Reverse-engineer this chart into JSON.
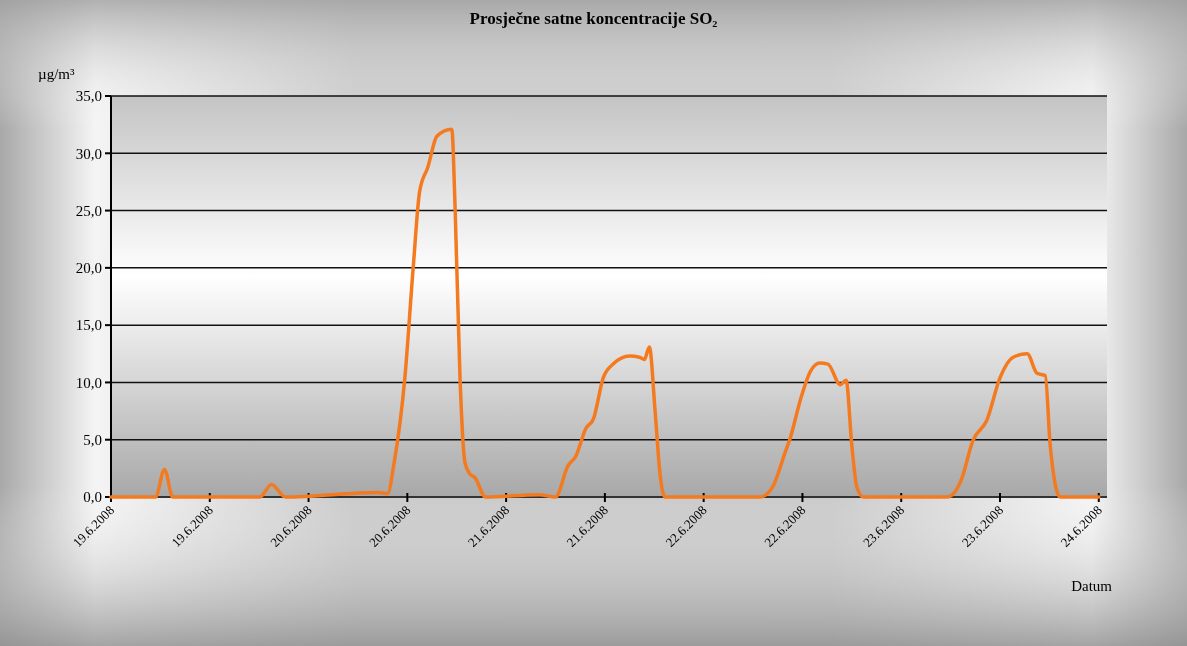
{
  "chart_data": {
    "type": "line",
    "title": "Prosječne satne koncentracije SO₂",
    "ylabel": "µg/m³",
    "xlabel": "Datum",
    "x": [
      "2008-06-19T00:00",
      "2008-06-19T05:24",
      "2008-06-19T06:30",
      "2008-06-19T07:30",
      "2008-06-19T18:06",
      "2008-06-19T19:30",
      "2008-06-19T21:12",
      "2008-06-20T08:24",
      "2008-06-20T09:36",
      "2008-06-20T10:24",
      "2008-06-20T11:42",
      "2008-06-20T12:42",
      "2008-06-20T13:30",
      "2008-06-20T14:30",
      "2008-06-20T15:36",
      "2008-06-20T17:24",
      "2008-06-20T17:48",
      "2008-06-20T18:24",
      "2008-06-20T19:00",
      "2008-06-20T19:36",
      "2008-06-20T20:12",
      "2008-06-20T21:30",
      "2008-06-21T04:00",
      "2008-06-21T06:00",
      "2008-06-21T07:30",
      "2008-06-21T08:30",
      "2008-06-21T09:42",
      "2008-06-21T10:36",
      "2008-06-21T11:48",
      "2008-06-21T13:00",
      "2008-06-21T15:00",
      "2008-06-21T16:12",
      "2008-06-21T16:48",
      "2008-06-21T17:24",
      "2008-06-21T18:06",
      "2008-06-21T18:42",
      "2008-06-21T19:18",
      "2008-06-22T06:54",
      "2008-06-22T08:24",
      "2008-06-22T09:54",
      "2008-06-22T10:30",
      "2008-06-22T11:48",
      "2008-06-22T13:00",
      "2008-06-22T14:06",
      "2008-06-22T15:06",
      "2008-06-22T16:36",
      "2008-06-22T17:18",
      "2008-06-22T18:00",
      "2008-06-22T18:36",
      "2008-06-22T19:24",
      "2008-06-23T05:36",
      "2008-06-23T07:18",
      "2008-06-23T08:42",
      "2008-06-23T10:24",
      "2008-06-23T12:00",
      "2008-06-23T13:36",
      "2008-06-23T15:18",
      "2008-06-23T16:30",
      "2008-06-23T17:30",
      "2008-06-23T18:06",
      "2008-06-23T19:18",
      "2008-06-24T00:00"
    ],
    "series": [
      {
        "color": "#f47a20",
        "values": [
          0,
          0,
          2.4,
          0,
          0,
          1.1,
          0,
          0.4,
          0.3,
          3,
          10.4,
          19.9,
          26.7,
          28.8,
          31.5,
          32.1,
          25.3,
          10.4,
          3,
          2,
          1.7,
          0,
          0.2,
          0,
          2.7,
          3.6,
          6,
          6.8,
          10.4,
          11.6,
          12.3,
          12.2,
          12,
          13.1,
          7.5,
          2,
          0,
          0,
          0.9,
          3.9,
          5.1,
          8.6,
          11,
          11.7,
          11.6,
          9.8,
          10.2,
          4.5,
          0.9,
          0,
          0,
          1.5,
          4.9,
          6.7,
          10.4,
          12.2,
          12.5,
          10.8,
          10.6,
          4.5,
          0,
          0
        ]
      }
    ],
    "xlim": [
      "2008-06-19T00:00",
      "2008-06-24T01:00"
    ],
    "xticks": [
      {
        "value": "2008-06-19T00:00",
        "label": "19.6.2008"
      },
      {
        "value": "2008-06-19T12:00",
        "label": "19.6.2008"
      },
      {
        "value": "2008-06-20T00:00",
        "label": "20.6.2008"
      },
      {
        "value": "2008-06-20T12:00",
        "label": "20.6.2008"
      },
      {
        "value": "2008-06-21T00:00",
        "label": "21.6.2008"
      },
      {
        "value": "2008-06-21T12:00",
        "label": "21.6.2008"
      },
      {
        "value": "2008-06-22T00:00",
        "label": "22.6.2008"
      },
      {
        "value": "2008-06-22T12:00",
        "label": "22.6.2008"
      },
      {
        "value": "2008-06-23T00:00",
        "label": "23.6.2008"
      },
      {
        "value": "2008-06-23T12:00",
        "label": "23.6.2008"
      },
      {
        "value": "2008-06-24T00:00",
        "label": "24.6.2008"
      }
    ],
    "ylim": [
      0,
      35
    ],
    "yticks": [
      {
        "value": 0,
        "label": "0,0"
      },
      {
        "value": 5,
        "label": "5,0"
      },
      {
        "value": 10,
        "label": "10,0"
      },
      {
        "value": 15,
        "label": "15,0"
      },
      {
        "value": 20,
        "label": "20,0"
      },
      {
        "value": 25,
        "label": "25,0"
      },
      {
        "value": 30,
        "label": "30,0"
      },
      {
        "value": 35,
        "label": "35,0"
      }
    ],
    "grid": "y"
  }
}
